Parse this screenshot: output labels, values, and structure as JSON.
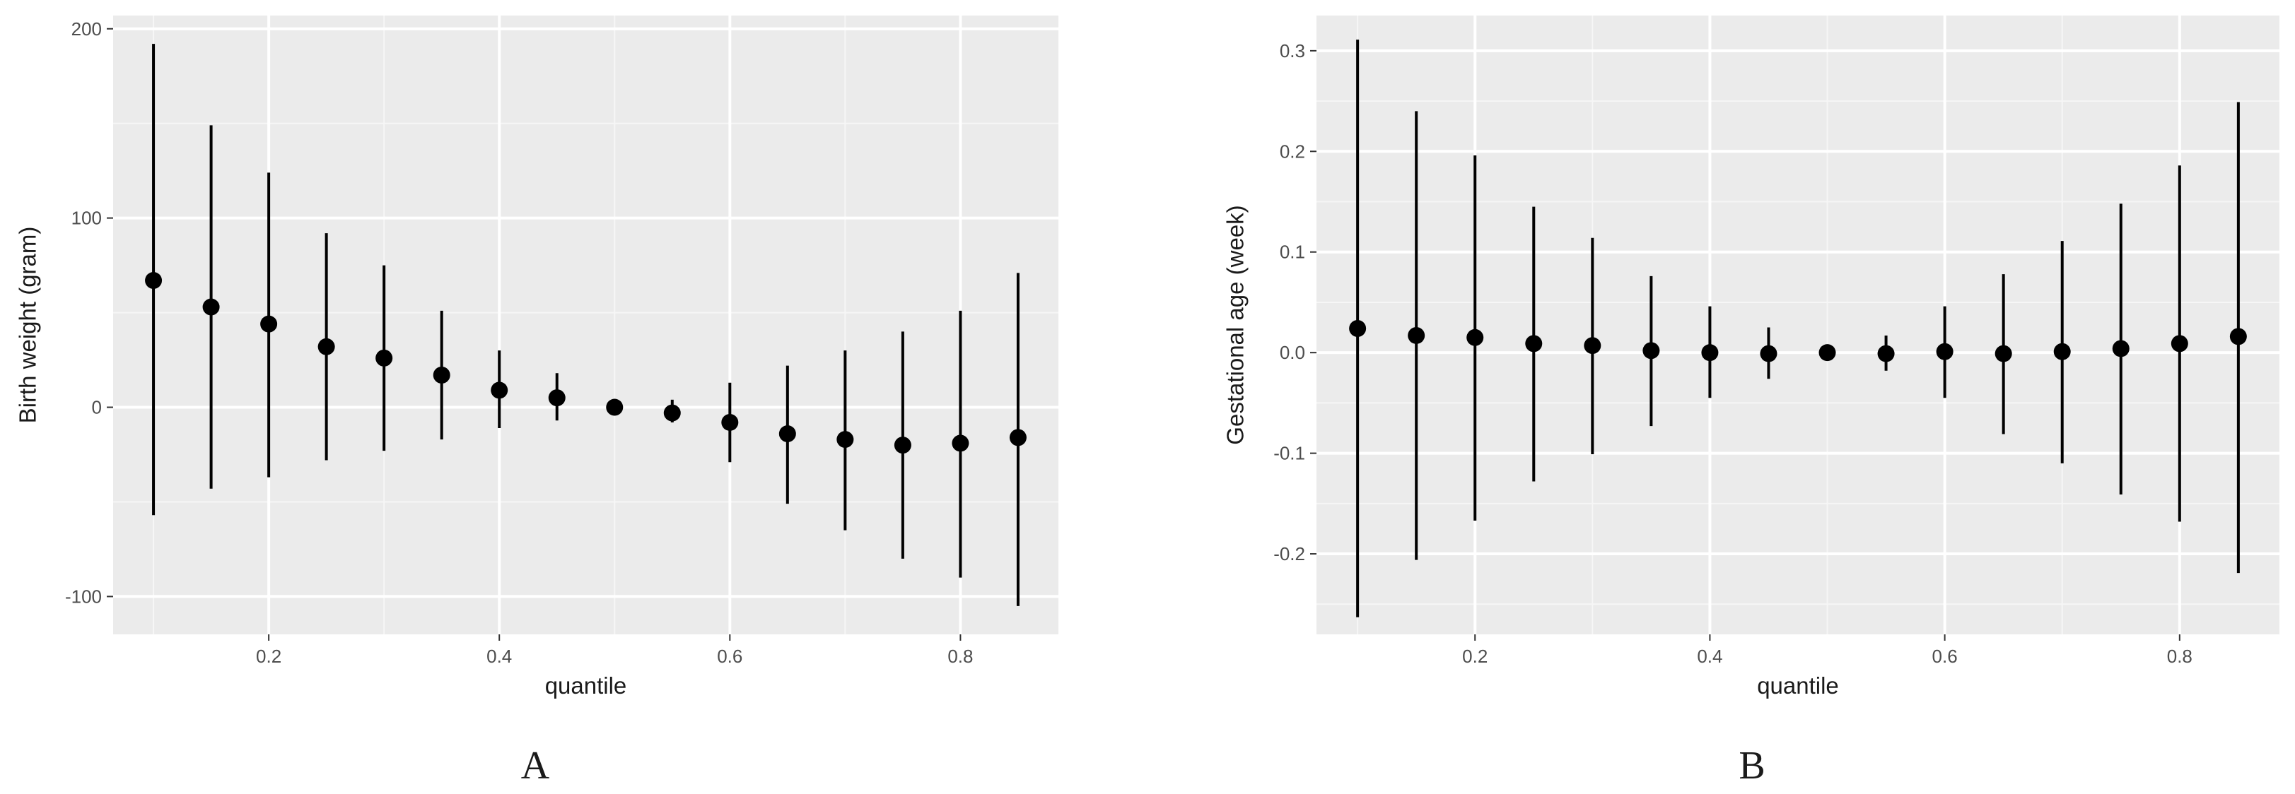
{
  "chart_data": [
    {
      "type": "errorbar",
      "panel_label": "A",
      "xlabel": "quantile",
      "ylabel": "Birth weight (gram)",
      "xlim": [
        0.065,
        0.885
      ],
      "ylim": [
        -120,
        207
      ],
      "xticks": [
        0.2,
        0.4,
        0.6,
        0.8
      ],
      "xtick_labels": [
        "0.2",
        "0.4",
        "0.6",
        "0.8"
      ],
      "yticks": [
        -100,
        0,
        100,
        200
      ],
      "ytick_labels": [
        "-100",
        "0",
        "100",
        "200"
      ],
      "grid": true,
      "points": [
        {
          "x": 0.1,
          "y": 67,
          "lo": -57,
          "hi": 192
        },
        {
          "x": 0.15,
          "y": 53,
          "lo": -43,
          "hi": 149
        },
        {
          "x": 0.2,
          "y": 44,
          "lo": -37,
          "hi": 124
        },
        {
          "x": 0.25,
          "y": 32,
          "lo": -28,
          "hi": 92
        },
        {
          "x": 0.3,
          "y": 26,
          "lo": -23,
          "hi": 75
        },
        {
          "x": 0.35,
          "y": 17,
          "lo": -17,
          "hi": 51
        },
        {
          "x": 0.4,
          "y": 9,
          "lo": -11,
          "hi": 30
        },
        {
          "x": 0.45,
          "y": 5,
          "lo": -7,
          "hi": 18
        },
        {
          "x": 0.5,
          "y": 0,
          "lo": 0,
          "hi": 0
        },
        {
          "x": 0.55,
          "y": -3,
          "lo": -8,
          "hi": 4
        },
        {
          "x": 0.6,
          "y": -8,
          "lo": -29,
          "hi": 13
        },
        {
          "x": 0.65,
          "y": -14,
          "lo": -51,
          "hi": 22
        },
        {
          "x": 0.7,
          "y": -17,
          "lo": -65,
          "hi": 30
        },
        {
          "x": 0.75,
          "y": -20,
          "lo": -80,
          "hi": 40
        },
        {
          "x": 0.8,
          "y": -19,
          "lo": -90,
          "hi": 51
        },
        {
          "x": 0.85,
          "y": -16,
          "lo": -105,
          "hi": 71
        }
      ]
    },
    {
      "type": "errorbar",
      "panel_label": "B",
      "xlabel": "quantile",
      "ylabel": "Gestational age (week)",
      "xlim": [
        0.065,
        0.885
      ],
      "ylim": [
        -0.28,
        0.335
      ],
      "xticks": [
        0.2,
        0.4,
        0.6,
        0.8
      ],
      "xtick_labels": [
        "0.2",
        "0.4",
        "0.6",
        "0.8"
      ],
      "yticks": [
        -0.2,
        -0.1,
        0.0,
        0.1,
        0.2,
        0.3
      ],
      "ytick_labels": [
        "-0.2",
        "-0.1",
        "0.0",
        "0.1",
        "0.2",
        "0.3"
      ],
      "grid": true,
      "points": [
        {
          "x": 0.1,
          "y": 0.024,
          "lo": -0.263,
          "hi": 0.311
        },
        {
          "x": 0.15,
          "y": 0.017,
          "lo": -0.206,
          "hi": 0.24
        },
        {
          "x": 0.2,
          "y": 0.015,
          "lo": -0.167,
          "hi": 0.196
        },
        {
          "x": 0.25,
          "y": 0.009,
          "lo": -0.128,
          "hi": 0.145
        },
        {
          "x": 0.3,
          "y": 0.007,
          "lo": -0.101,
          "hi": 0.114
        },
        {
          "x": 0.35,
          "y": 0.002,
          "lo": -0.073,
          "hi": 0.076
        },
        {
          "x": 0.4,
          "y": 0.0,
          "lo": -0.045,
          "hi": 0.046
        },
        {
          "x": 0.45,
          "y": -0.001,
          "lo": -0.026,
          "hi": 0.025
        },
        {
          "x": 0.5,
          "y": 0.0,
          "lo": 0.0,
          "hi": 0.0
        },
        {
          "x": 0.55,
          "y": -0.001,
          "lo": -0.018,
          "hi": 0.017
        },
        {
          "x": 0.6,
          "y": 0.001,
          "lo": -0.045,
          "hi": 0.046
        },
        {
          "x": 0.65,
          "y": -0.001,
          "lo": -0.081,
          "hi": 0.078
        },
        {
          "x": 0.7,
          "y": 0.001,
          "lo": -0.11,
          "hi": 0.111
        },
        {
          "x": 0.75,
          "y": 0.004,
          "lo": -0.141,
          "hi": 0.148
        },
        {
          "x": 0.8,
          "y": 0.009,
          "lo": -0.168,
          "hi": 0.186
        },
        {
          "x": 0.85,
          "y": 0.016,
          "lo": -0.219,
          "hi": 0.249
        }
      ]
    }
  ],
  "colors": {
    "panel_background": "#ebebeb",
    "major_grid": "#ffffff",
    "minor_grid": "#f6f6f6",
    "marker": "#000000",
    "errorbar": "#000000"
  }
}
